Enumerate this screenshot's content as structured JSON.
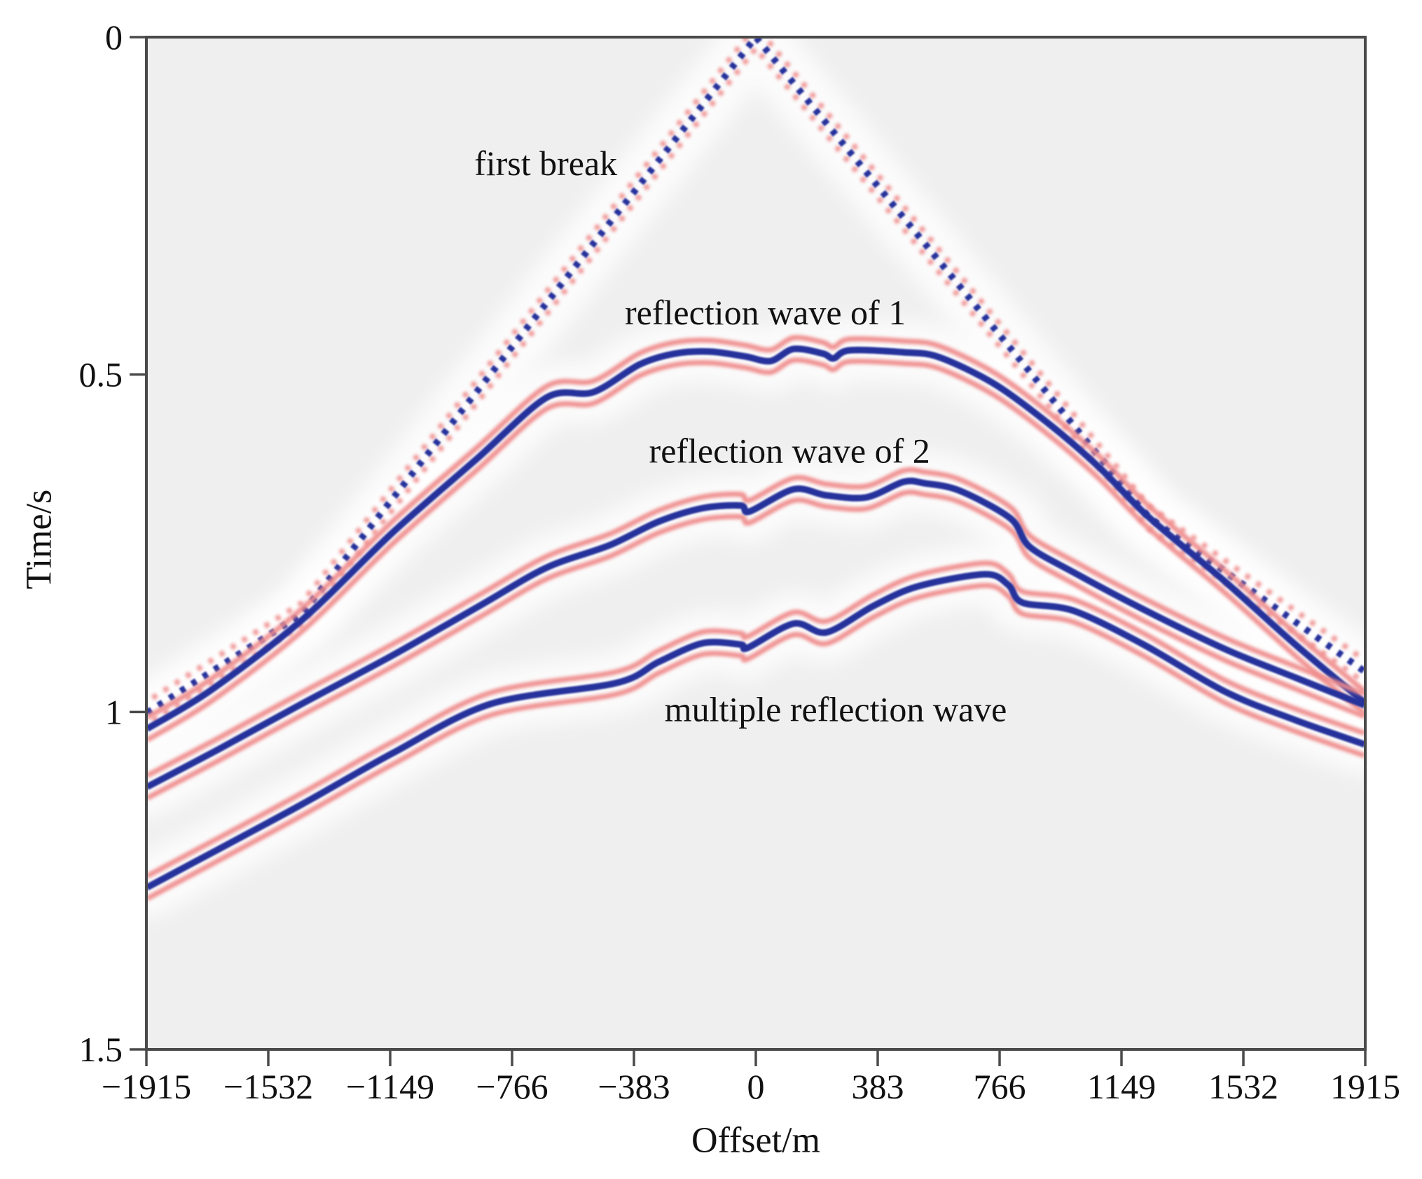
{
  "figure": {
    "xlabel": "Offset/m",
    "ylabel": "Time/s"
  },
  "chart_data": {
    "type": "line",
    "subtype": "seismic-shot-gather-wiggle",
    "title": "",
    "xlabel": "Offset/m",
    "ylabel": "Time/s",
    "xlim": [
      -1915,
      1915
    ],
    "ylim": [
      0,
      1.5
    ],
    "y_inverted": true,
    "grid": false,
    "legend": false,
    "x_ticks": [
      -1915,
      -1532,
      -1149,
      -766,
      -383,
      0,
      383,
      766,
      1149,
      1532,
      1915
    ],
    "y_ticks": [
      0,
      0.5,
      1,
      1.5
    ],
    "plot_bg": "#efefef",
    "colors": {
      "peak_blue": "#27309b",
      "trough_red": "#f08c8c",
      "halo": "#ffffff",
      "axis": "#4a4a4a",
      "text": "#111111"
    },
    "annotations": [
      {
        "text": "first break",
        "offset_m": -660,
        "time_s": 0.187
      },
      {
        "text": "reflection wave of 1",
        "offset_m": 30,
        "time_s": 0.408
      },
      {
        "text": "reflection wave of 2",
        "offset_m": 106,
        "time_s": 0.613
      },
      {
        "text": "multiple reflection wave",
        "offset_m": 251,
        "time_s": 0.996
      }
    ],
    "series": [
      {
        "name": "first break",
        "style": "dotted",
        "smooth": false,
        "points": [
          [
            -1913,
            1.001
          ],
          [
            -1427,
            0.855
          ],
          [
            0,
            0.0
          ],
          [
            1234,
            0.711
          ],
          [
            1913,
            0.94
          ]
        ]
      },
      {
        "name": "reflection wave of 1",
        "style": "solid",
        "smooth": true,
        "points": [
          [
            -1913,
            1.025
          ],
          [
            -1713,
            0.968
          ],
          [
            -1427,
            0.864
          ],
          [
            -1141,
            0.734
          ],
          [
            -877,
            0.625
          ],
          [
            -657,
            0.534
          ],
          [
            -510,
            0.526
          ],
          [
            -365,
            0.485
          ],
          [
            -255,
            0.469
          ],
          [
            -145,
            0.466
          ],
          [
            -35,
            0.473
          ],
          [
            46,
            0.48
          ],
          [
            119,
            0.462
          ],
          [
            211,
            0.469
          ],
          [
            244,
            0.476
          ],
          [
            295,
            0.464
          ],
          [
            464,
            0.467
          ],
          [
            574,
            0.474
          ],
          [
            750,
            0.514
          ],
          [
            926,
            0.575
          ],
          [
            1080,
            0.638
          ],
          [
            1234,
            0.711
          ],
          [
            1475,
            0.807
          ],
          [
            1695,
            0.9
          ],
          [
            1913,
            0.986
          ]
        ]
      },
      {
        "name": "reflection wave of 2",
        "style": "solid",
        "smooth": true,
        "points": [
          [
            -1913,
            1.111
          ],
          [
            -1691,
            1.056
          ],
          [
            -1427,
            0.988
          ],
          [
            -1141,
            0.916
          ],
          [
            -862,
            0.841
          ],
          [
            -657,
            0.786
          ],
          [
            -460,
            0.753
          ],
          [
            -306,
            0.718
          ],
          [
            -167,
            0.698
          ],
          [
            -48,
            0.694
          ],
          [
            -20,
            0.703
          ],
          [
            119,
            0.67
          ],
          [
            222,
            0.679
          ],
          [
            347,
            0.682
          ],
          [
            464,
            0.659
          ],
          [
            530,
            0.661
          ],
          [
            640,
            0.672
          ],
          [
            800,
            0.713
          ],
          [
            860,
            0.755
          ],
          [
            998,
            0.793
          ],
          [
            1218,
            0.848
          ],
          [
            1475,
            0.907
          ],
          [
            1695,
            0.949
          ],
          [
            1913,
            0.99
          ]
        ]
      },
      {
        "name": "multiple reflection wave",
        "style": "solid",
        "smooth": true,
        "points": [
          [
            -1913,
            1.26
          ],
          [
            -1691,
            1.204
          ],
          [
            -1427,
            1.137
          ],
          [
            -1141,
            1.061
          ],
          [
            -833,
            0.988
          ],
          [
            -438,
            0.957
          ],
          [
            -306,
            0.926
          ],
          [
            -167,
            0.898
          ],
          [
            -48,
            0.9
          ],
          [
            -26,
            0.905
          ],
          [
            119,
            0.869
          ],
          [
            222,
            0.882
          ],
          [
            369,
            0.843
          ],
          [
            508,
            0.814
          ],
          [
            721,
            0.796
          ],
          [
            794,
            0.812
          ],
          [
            838,
            0.838
          ],
          [
            998,
            0.85
          ],
          [
            1218,
            0.9
          ],
          [
            1475,
            0.97
          ],
          [
            1695,
            1.012
          ],
          [
            1913,
            1.048
          ]
        ]
      }
    ]
  }
}
